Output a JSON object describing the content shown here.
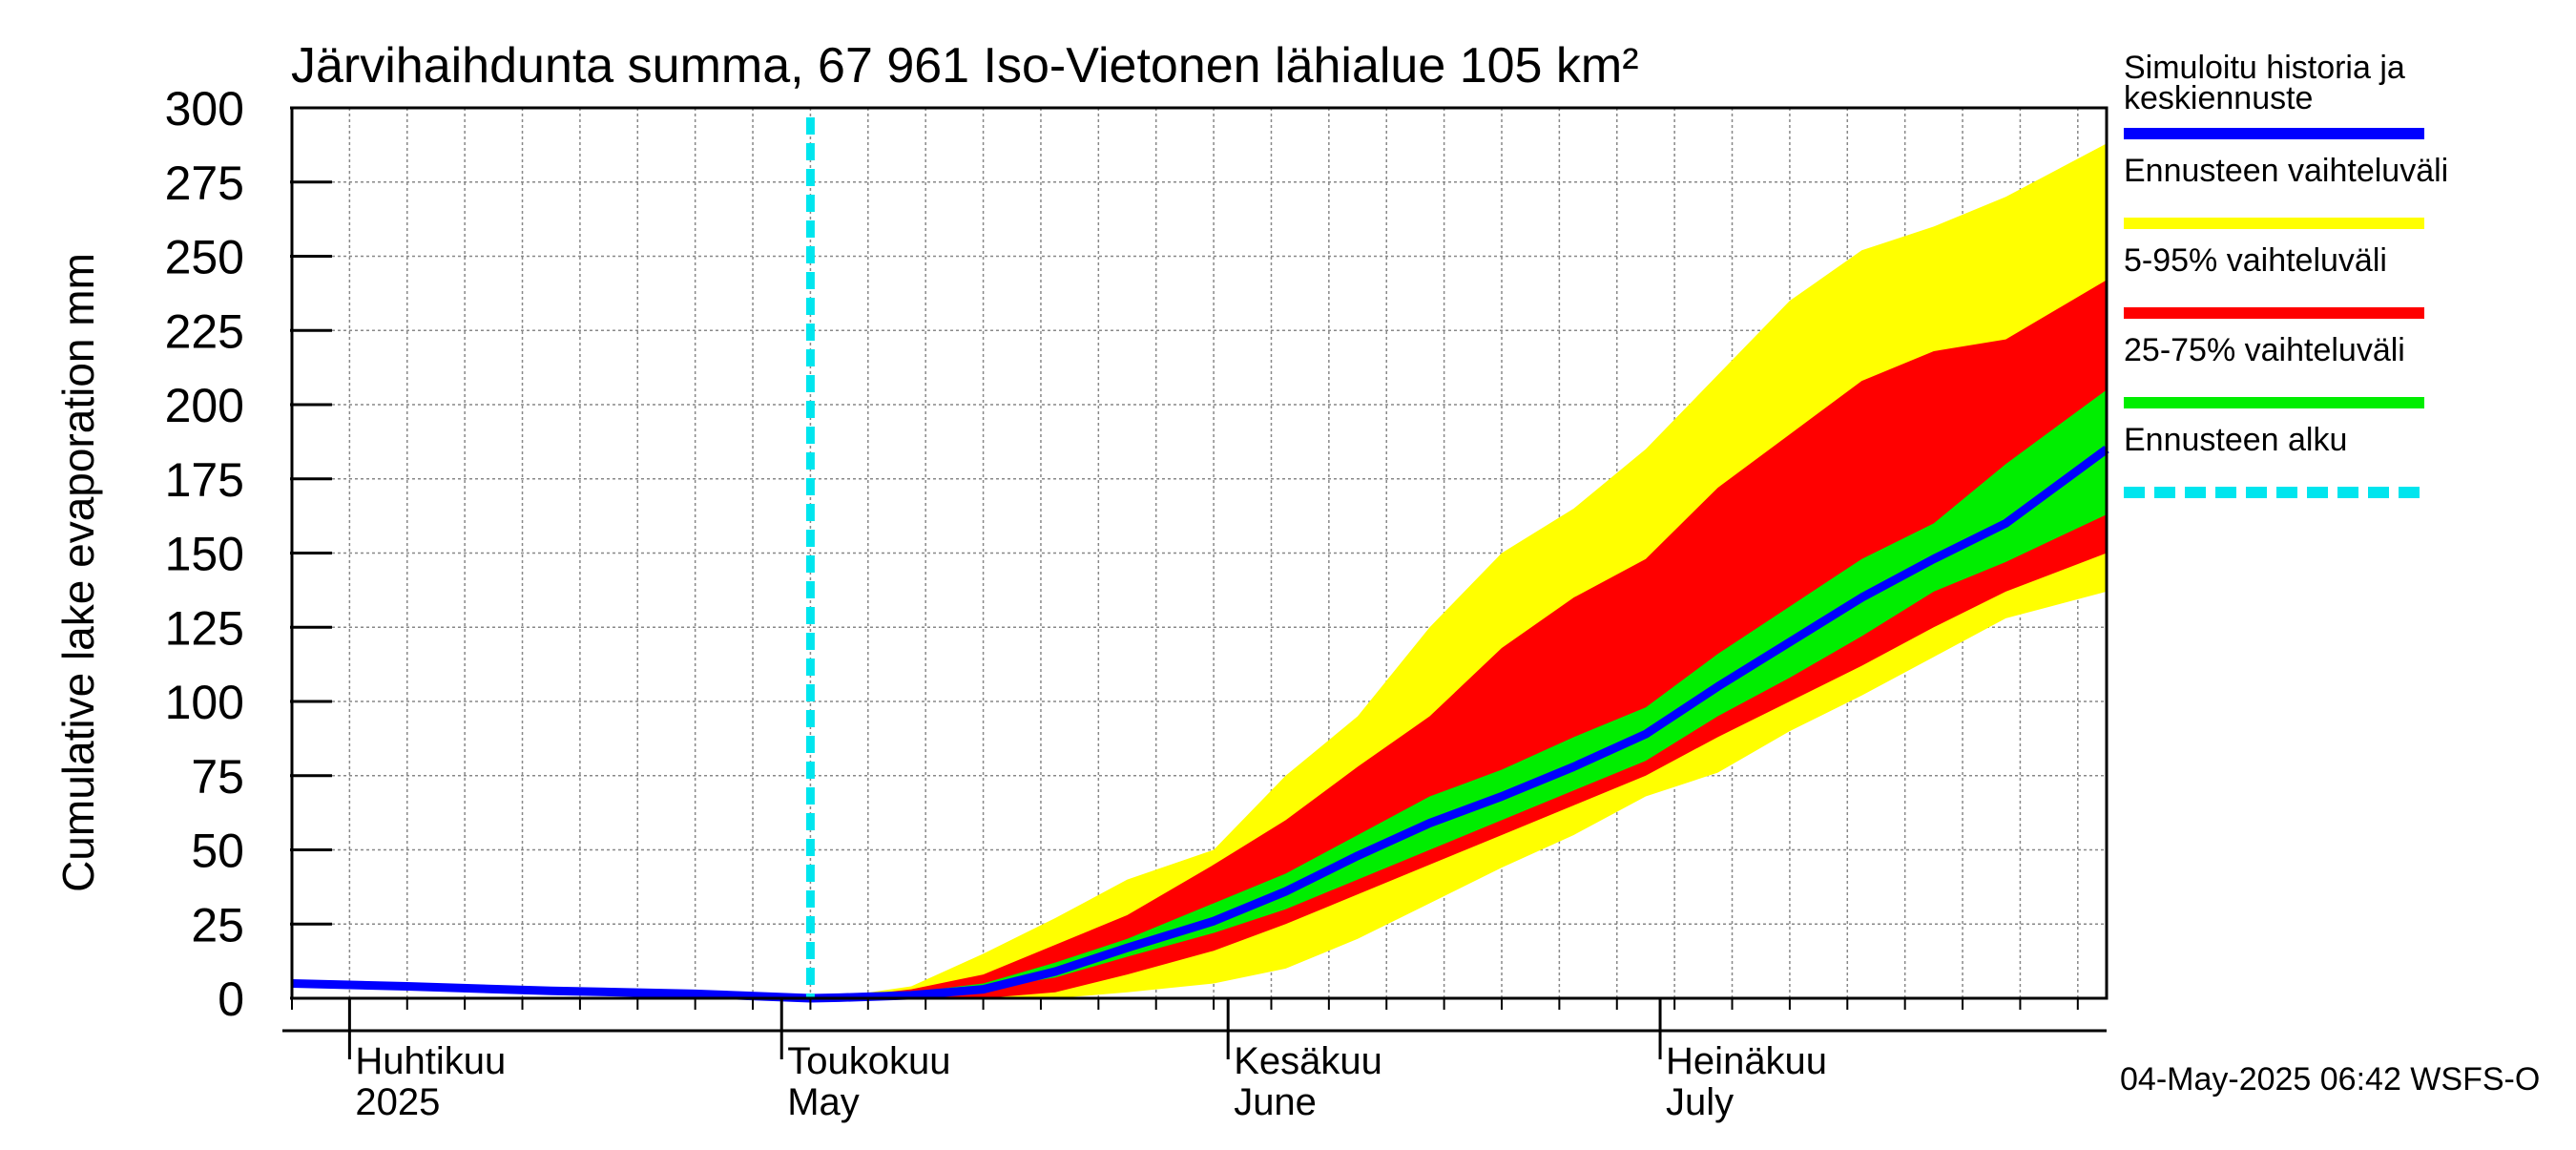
{
  "chart_data": {
    "type": "area",
    "title": "Järvihaihdunta summa, 67 961 Iso-Vietonen lähialue 105 km²",
    "ylabel": "Cumulative lake evaporation   mm",
    "ylim": [
      0,
      300
    ],
    "yticks": [
      0,
      25,
      50,
      75,
      100,
      125,
      150,
      175,
      200,
      225,
      250,
      275,
      300
    ],
    "xlim": [
      "2025-03-28",
      "2025-08-01"
    ],
    "grid": true,
    "legend_position": "right",
    "month_labels": [
      {
        "date": "2025-04-01",
        "fi": "Huhtikuu",
        "en": "2025"
      },
      {
        "date": "2025-05-01",
        "fi": "Toukokuu",
        "en": "May"
      },
      {
        "date": "2025-06-01",
        "fi": "Kesäkuu",
        "en": "June"
      },
      {
        "date": "2025-07-01",
        "fi": "Heinäkuu",
        "en": "July"
      }
    ],
    "forecast_start": "2025-05-03",
    "x": [
      "2025-03-28",
      "2025-04-05",
      "2025-04-15",
      "2025-04-25",
      "2025-05-03",
      "2025-05-05",
      "2025-05-10",
      "2025-05-15",
      "2025-05-20",
      "2025-05-25",
      "2025-05-31",
      "2025-06-05",
      "2025-06-10",
      "2025-06-15",
      "2025-06-20",
      "2025-06-25",
      "2025-06-30",
      "2025-07-05",
      "2025-07-10",
      "2025-07-15",
      "2025-07-20",
      "2025-07-25",
      "2025-08-01"
    ],
    "series": [
      {
        "name": "Simuloitu historia ja keskiennuste",
        "color": "#0000ff",
        "values": [
          5,
          4,
          2.5,
          1.5,
          0,
          0.2,
          1,
          3,
          9,
          17,
          26,
          36,
          48,
          59,
          68,
          78,
          89,
          105,
          120,
          135,
          148,
          160,
          185
        ]
      },
      {
        "name": "Ennusteen vaihteluväli (ala)",
        "color": "#ffff00",
        "values": [
          null,
          null,
          null,
          null,
          0,
          0,
          0,
          0,
          0,
          2,
          5,
          10,
          20,
          32,
          44,
          55,
          68,
          76,
          90,
          102,
          115,
          128,
          137
        ]
      },
      {
        "name": "Ennusteen vaihteluväli (ylä)",
        "color": "#ffff00",
        "values": [
          null,
          null,
          null,
          null,
          0,
          0.5,
          4,
          15,
          27,
          40,
          50,
          75,
          95,
          125,
          150,
          165,
          185,
          210,
          235,
          252,
          260,
          270,
          288
        ]
      },
      {
        "name": "5-95% vaihteluväli (ala)",
        "color": "#ff0000",
        "values": [
          null,
          null,
          null,
          null,
          0,
          0,
          0,
          0,
          2,
          8,
          16,
          25,
          35,
          45,
          55,
          65,
          75,
          88,
          100,
          112,
          125,
          137,
          150
        ]
      },
      {
        "name": "5-95% vaihteluväli (ylä)",
        "color": "#ff0000",
        "values": [
          null,
          null,
          null,
          null,
          0,
          0.3,
          3,
          8,
          18,
          28,
          45,
          60,
          78,
          95,
          118,
          135,
          148,
          172,
          190,
          208,
          218,
          222,
          242
        ]
      },
      {
        "name": "25-75% vaihteluväli (ala)",
        "color": "#00ee00",
        "values": [
          null,
          null,
          null,
          null,
          0,
          0.1,
          1,
          3,
          7,
          14,
          22,
          30,
          40,
          50,
          60,
          70,
          80,
          95,
          108,
          122,
          137,
          147,
          163
        ]
      },
      {
        "name": "25-75% vaihteluväli (ylä)",
        "color": "#00ee00",
        "values": [
          null,
          null,
          null,
          null,
          0,
          0.2,
          2,
          5,
          12,
          20,
          32,
          42,
          55,
          68,
          77,
          88,
          98,
          116,
          132,
          148,
          160,
          180,
          205
        ]
      }
    ]
  },
  "legend": {
    "items": [
      {
        "label_line1": "Simuloitu historia ja",
        "label_line2": "keskiennuste",
        "color": "#0000ff",
        "style": "solid"
      },
      {
        "label_line1": "Ennusteen vaihteluväli",
        "label_line2": "",
        "color": "#ffff00",
        "style": "solid"
      },
      {
        "label_line1": "5-95% vaihteluväli",
        "label_line2": "",
        "color": "#ff0000",
        "style": "solid"
      },
      {
        "label_line1": "25-75% vaihteluväli",
        "label_line2": "",
        "color": "#00ee00",
        "style": "solid"
      },
      {
        "label_line1": "Ennusteen alku",
        "label_line2": "",
        "color": "#00e5ee",
        "style": "dashed"
      }
    ]
  },
  "footer": {
    "timestamp": "04-May-2025 06:42 WSFS-O"
  },
  "colors": {
    "mean_line": "#0000ff",
    "range_band": "#ffff00",
    "p5_95_band": "#ff0000",
    "p25_75_band": "#00ee00",
    "forecast_start_line": "#00e5ee",
    "grid": "#888888"
  }
}
